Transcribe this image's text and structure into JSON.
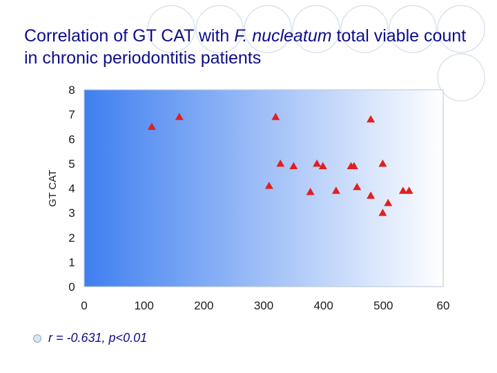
{
  "slide": {
    "title_part1": "Correlation of GT CAT with ",
    "title_species": "F. nucleatum",
    "title_part2": " total viable count in chronic periodontitis patients",
    "bullet": "r = -0.631, p<0.01"
  },
  "chart_data": {
    "type": "scatter",
    "title": "",
    "xlabel": "",
    "ylabel": "GT CAT",
    "xlim": [
      0,
      600
    ],
    "ylim": [
      0,
      8
    ],
    "x_ticks": [
      "0",
      "100",
      "200",
      "300",
      "400",
      "500",
      "60"
    ],
    "y_ticks": [
      "0",
      "1",
      "2",
      "3",
      "4",
      "5",
      "6",
      "7",
      "8"
    ],
    "grid": false,
    "marker": "triangle",
    "marker_color": "#e02020",
    "background_gradient": [
      "#3f7ff0",
      "#ffffff"
    ],
    "points": [
      {
        "x": 113,
        "y": 6.5
      },
      {
        "x": 159,
        "y": 6.9
      },
      {
        "x": 309,
        "y": 4.1
      },
      {
        "x": 320,
        "y": 6.9
      },
      {
        "x": 328,
        "y": 5.0
      },
      {
        "x": 350,
        "y": 4.9
      },
      {
        "x": 378,
        "y": 3.85
      },
      {
        "x": 389,
        "y": 5.0
      },
      {
        "x": 399,
        "y": 4.9
      },
      {
        "x": 421,
        "y": 3.9
      },
      {
        "x": 446,
        "y": 4.9
      },
      {
        "x": 451,
        "y": 4.9
      },
      {
        "x": 456,
        "y": 4.05
      },
      {
        "x": 479,
        "y": 6.8
      },
      {
        "x": 479,
        "y": 3.7
      },
      {
        "x": 499,
        "y": 5.0
      },
      {
        "x": 499,
        "y": 3.0
      },
      {
        "x": 508,
        "y": 3.4
      },
      {
        "x": 533,
        "y": 3.9
      },
      {
        "x": 543,
        "y": 3.9
      }
    ]
  }
}
